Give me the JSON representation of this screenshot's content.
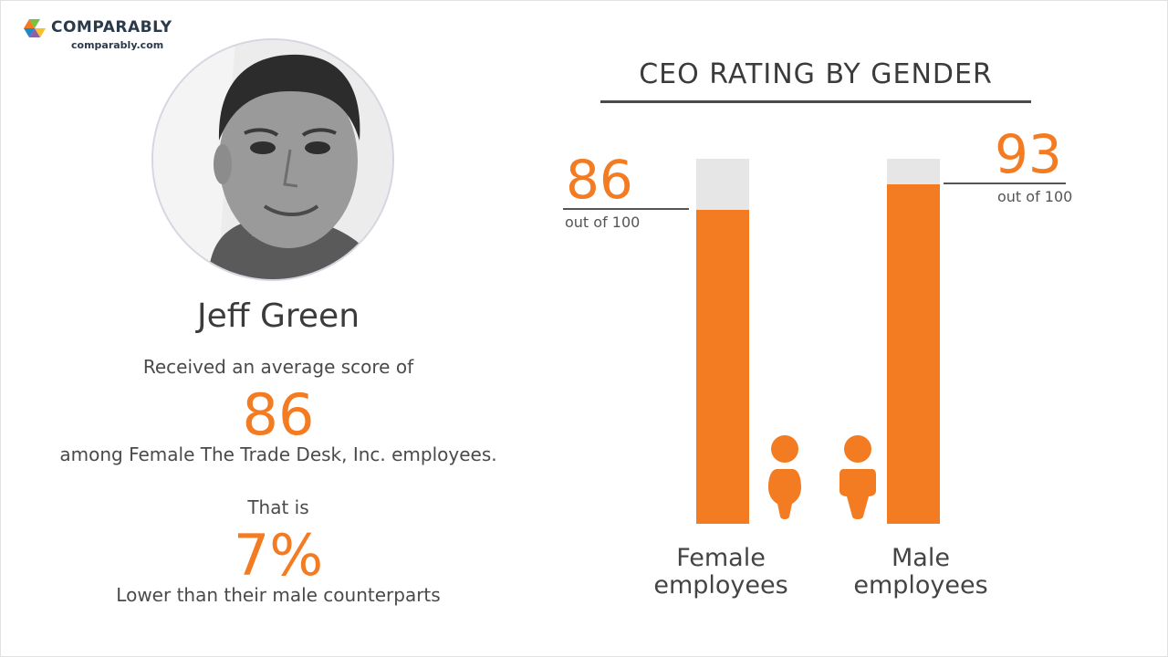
{
  "brand": {
    "name": "COMPARABLY",
    "url": "comparably.com",
    "colors": {
      "green": "#7ac142",
      "blue": "#1e88c8",
      "orange": "#f37b21",
      "dark": "#2b3a4a"
    }
  },
  "ceo": {
    "name": "Jeff Green",
    "photo_icon": "ceo-portrait-icon"
  },
  "summary": {
    "received_text": "Received an average score of",
    "score": "86",
    "among_text": "among Female The Trade Desk, Inc. employees.",
    "that_is": "That is",
    "difference": "7%",
    "lower_text": "Lower than their male counterparts"
  },
  "chart_data": {
    "type": "bar",
    "title": "CEO RATING BY GENDER",
    "categories": [
      "Female employees",
      "Male employees"
    ],
    "category_lines": [
      [
        "Female",
        "employees"
      ],
      [
        "Male",
        "employees"
      ]
    ],
    "values": [
      86,
      93
    ],
    "value_labels": [
      "86",
      "93"
    ],
    "max": 100,
    "ylim": [
      0,
      100
    ],
    "sub_label": "out of 100",
    "icons": [
      "female-person-icon",
      "male-person-icon"
    ],
    "colors": {
      "fill": "#f37b21",
      "remainder": "#e6e6e6"
    },
    "legend": "none",
    "grid": false
  }
}
